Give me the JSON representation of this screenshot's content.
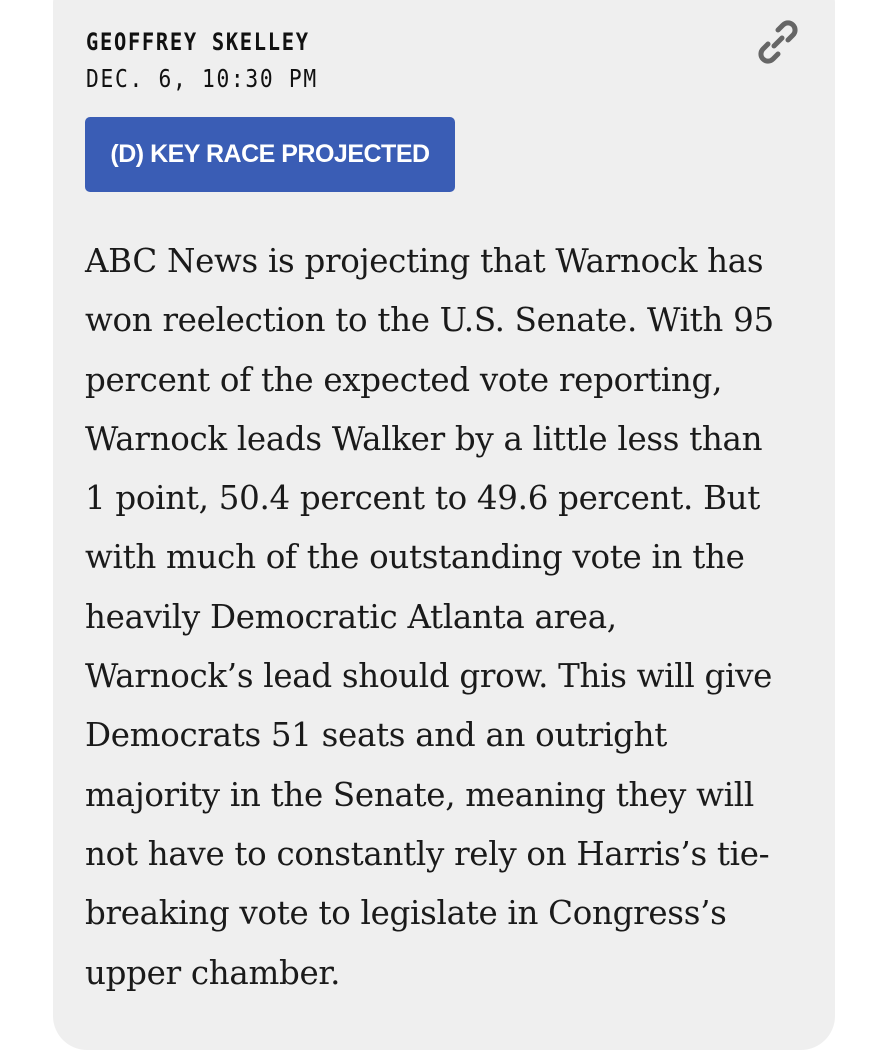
{
  "post": {
    "author": "GEOFFREY SKELLEY",
    "timestamp": "DEC. 6, 10:30 PM",
    "badge": "(D) KEY RACE PROJECTED",
    "badge_color": "#3a5db5",
    "link_icon": "link-icon",
    "body_lines": [
      "ABC News is projecting that Warnock has",
      "won reelection to the U.S. Senate. With 95",
      "percent of the expected vote reporting,",
      "Warnock leads Walker by a little less than",
      "1 point, 50.4 percent to 49.6 percent. But",
      "with much of the outstanding vote in the",
      "heavily Democratic Atlanta area,",
      "Warnock’s lead should grow. This will give",
      "Democrats 51 seats and an outright",
      "majority in the Senate, meaning they will",
      "not have to constantly rely on Harris’s tie-",
      "breaking vote to legislate in Congress’s",
      "upper chamber."
    ]
  }
}
